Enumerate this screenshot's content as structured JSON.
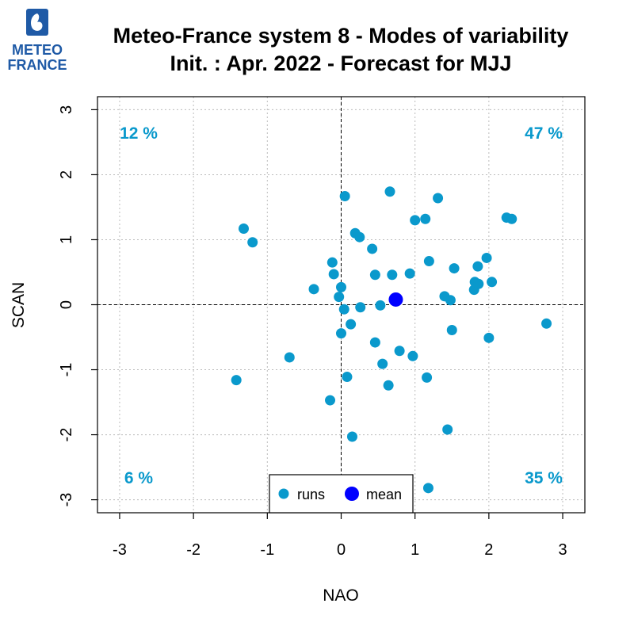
{
  "brand": {
    "line1": "METEO",
    "line2": "FRANCE",
    "color": "#1f5aa6"
  },
  "chart_data": {
    "type": "scatter",
    "title": "Meteo-France system 8 - Modes of variability",
    "subtitle": "Init. : Apr. 2022 - Forecast for MJJ",
    "xlabel": "NAO",
    "ylabel": "SCAN",
    "xlim": [
      -3.3,
      3.3
    ],
    "ylim": [
      -3.2,
      3.2
    ],
    "xticks": [
      -3,
      -2,
      -1,
      0,
      1,
      2,
      3
    ],
    "yticks": [
      -3,
      -2,
      -1,
      0,
      1,
      2,
      3
    ],
    "grid": true,
    "zero_lines": true,
    "quadrant_percentages": {
      "top_left": "12 %",
      "top_right": "47 %",
      "bottom_left": "6 %",
      "bottom_right": "35 %"
    },
    "colors": {
      "runs": "#0a99cc",
      "mean": "#0000ff"
    },
    "legend": {
      "position": "bottom-center",
      "entries": [
        "runs",
        "mean"
      ]
    },
    "series": [
      {
        "name": "runs",
        "points": [
          [
            -1.32,
            1.17
          ],
          [
            -1.2,
            0.96
          ],
          [
            -1.42,
            -1.16
          ],
          [
            -0.7,
            -0.81
          ],
          [
            -0.37,
            0.24
          ],
          [
            -0.15,
            -1.47
          ],
          [
            -0.12,
            0.65
          ],
          [
            -0.1,
            0.47
          ],
          [
            -0.03,
            0.12
          ],
          [
            0.0,
            0.27
          ],
          [
            0.0,
            -0.44
          ],
          [
            0.04,
            -0.07
          ],
          [
            0.05,
            1.67
          ],
          [
            0.08,
            -1.11
          ],
          [
            0.13,
            -0.3
          ],
          [
            0.15,
            -2.03
          ],
          [
            0.19,
            1.1
          ],
          [
            0.25,
            1.04
          ],
          [
            0.26,
            -0.04
          ],
          [
            0.42,
            0.86
          ],
          [
            0.46,
            0.46
          ],
          [
            0.46,
            -0.58
          ],
          [
            0.53,
            -0.01
          ],
          [
            0.56,
            -0.91
          ],
          [
            0.64,
            -1.24
          ],
          [
            0.66,
            1.74
          ],
          [
            0.69,
            0.46
          ],
          [
            0.79,
            -0.71
          ],
          [
            0.93,
            0.48
          ],
          [
            0.97,
            -0.79
          ],
          [
            1.0,
            1.3
          ],
          [
            1.14,
            1.32
          ],
          [
            1.16,
            -1.12
          ],
          [
            1.19,
            0.67
          ],
          [
            1.18,
            -2.82
          ],
          [
            1.31,
            1.64
          ],
          [
            1.4,
            0.13
          ],
          [
            1.44,
            -1.92
          ],
          [
            1.48,
            0.07
          ],
          [
            1.5,
            -0.39
          ],
          [
            1.53,
            0.56
          ],
          [
            1.8,
            0.23
          ],
          [
            1.81,
            0.35
          ],
          [
            1.86,
            0.32
          ],
          [
            1.85,
            0.59
          ],
          [
            1.97,
            0.72
          ],
          [
            2.0,
            -0.51
          ],
          [
            2.04,
            0.35
          ],
          [
            2.24,
            1.34
          ],
          [
            2.31,
            1.32
          ],
          [
            2.78,
            -0.29
          ]
        ]
      },
      {
        "name": "mean",
        "points": [
          [
            0.74,
            0.08
          ]
        ]
      }
    ]
  }
}
